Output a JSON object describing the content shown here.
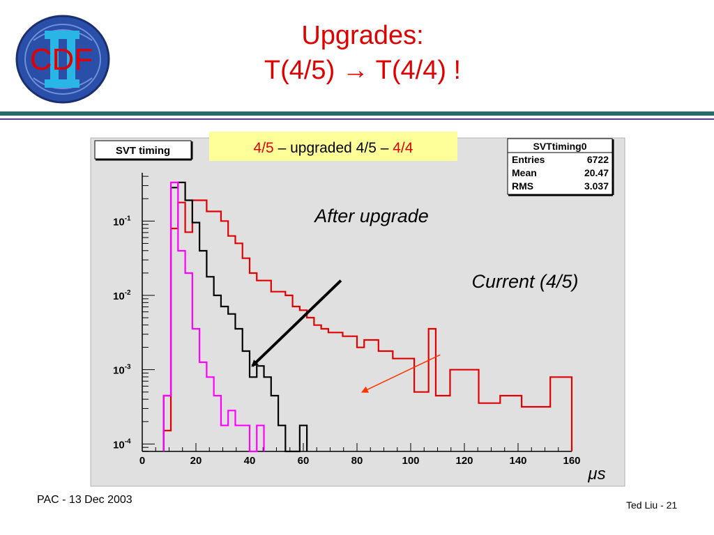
{
  "slide": {
    "title_line1": "Upgrades:",
    "title_line2": "T(4/5) → T(4/4) !",
    "logo_text": "CDF",
    "footer_left": "PAC  -  13 Dec 2003",
    "footer_right": "Ted Liu - 21"
  },
  "colors": {
    "title": "#e00000",
    "frame_bg": "#e0e0e0",
    "label_box_bg": "#ffff99",
    "current": "#e00000",
    "after": "#000000",
    "magenta": "#ff00ff",
    "arrow_current": "#ff3300"
  },
  "chart_data": {
    "type": "histogram",
    "title": "SVT timing",
    "label_box": {
      "part1": "4/5",
      "part2": " – upgraded 4/5 – ",
      "part3": "4/4"
    },
    "stats": {
      "name": "SVTtiming0",
      "rows": [
        {
          "label": "Entries",
          "value": "6722"
        },
        {
          "label": "Mean",
          "value": "20.47"
        },
        {
          "label": "RMS",
          "value": "3.037"
        }
      ]
    },
    "xlabel": "μs",
    "xlim": [
      0,
      160
    ],
    "ylim_log10": [
      -4.1,
      -0.35
    ],
    "log_y": true,
    "x_ticks": [
      "0",
      "20",
      "40",
      "60",
      "80",
      "100",
      "120",
      "140",
      "160"
    ],
    "y_ticks": [
      {
        "base": "10",
        "exp": "-1",
        "value": -1
      },
      {
        "base": "10",
        "exp": "-2",
        "value": -2
      },
      {
        "base": "10",
        "exp": "-3",
        "value": -3
      },
      {
        "base": "10",
        "exp": "-4",
        "value": -4
      }
    ],
    "bin_width": 4,
    "annotations": [
      {
        "text": "After upgrade",
        "from": [
          74,
          -1.8
        ],
        "to": [
          41,
          -2.95
        ]
      },
      {
        "text": "Current  (4/5)",
        "from": [
          111,
          -2.8
        ],
        "to": [
          82,
          -3.3
        ]
      }
    ],
    "series": [
      {
        "key": "current",
        "values": {
          "12": -3.82,
          "16": -1.1,
          "20": -0.75,
          "24": -1.15,
          "28": -0.72,
          "32": -0.72,
          "36": -0.87,
          "40": -0.87,
          "44": -1.0,
          "48": -1.2,
          "52": -1.3,
          "56": -1.5,
          "60": -1.7,
          "64": -1.8,
          "68": -1.8,
          "72": -1.95,
          "76": -1.95,
          "80": -2.0,
          "84": -2.15,
          "88": -2.2,
          "92": -2.3,
          "96": -2.4,
          "100": -2.45,
          "104": -2.5,
          "108": -2.5,
          "112": -2.55,
          "116": -2.55,
          "120": -2.7,
          "124": -2.6,
          "128": -2.6,
          "132": -2.75,
          "136": -2.75,
          "140": -2.85,
          "144": -2.85,
          "148": -2.85,
          "152": -3.3,
          "156": -3.3,
          "160": -2.45,
          "164": -3.35,
          "168": -3.35,
          "172": -3.0,
          "176": -3.0,
          "180": -3.0,
          "184": -3.0,
          "188": -3.45,
          "192": -3.45,
          "196": -3.45,
          "200": -3.35,
          "204": -3.35,
          "208": -3.35,
          "212": -3.5,
          "216": -3.5,
          "220": -3.5,
          "224": -3.5,
          "228": -3.1,
          "232": -3.1,
          "236": -3.1
        }
      },
      {
        "key": "after",
        "values": {
          "12": -3.35,
          "16": -0.55,
          "20": -0.48,
          "24": -0.72,
          "28": -1.02,
          "32": -1.4,
          "36": -1.75,
          "40": -2.0,
          "44": -2.15,
          "48": -2.25,
          "52": -2.45,
          "56": -2.75,
          "60": -3.1,
          "64": -2.95,
          "68": -3.1,
          "72": -3.35,
          "76": -3.75,
          "80": -4.2,
          "84": -4.2,
          "88": -3.75
        }
      },
      {
        "key": "magenta",
        "values": {
          "12": -3.35,
          "16": -0.48,
          "20": -1.4,
          "24": -1.7,
          "28": -2.45,
          "32": -2.9,
          "36": -3.1,
          "40": -3.35,
          "44": -3.75,
          "48": -3.55,
          "52": -3.75,
          "56": -3.75,
          "60": -4.2,
          "64": -3.75
        }
      }
    ]
  }
}
